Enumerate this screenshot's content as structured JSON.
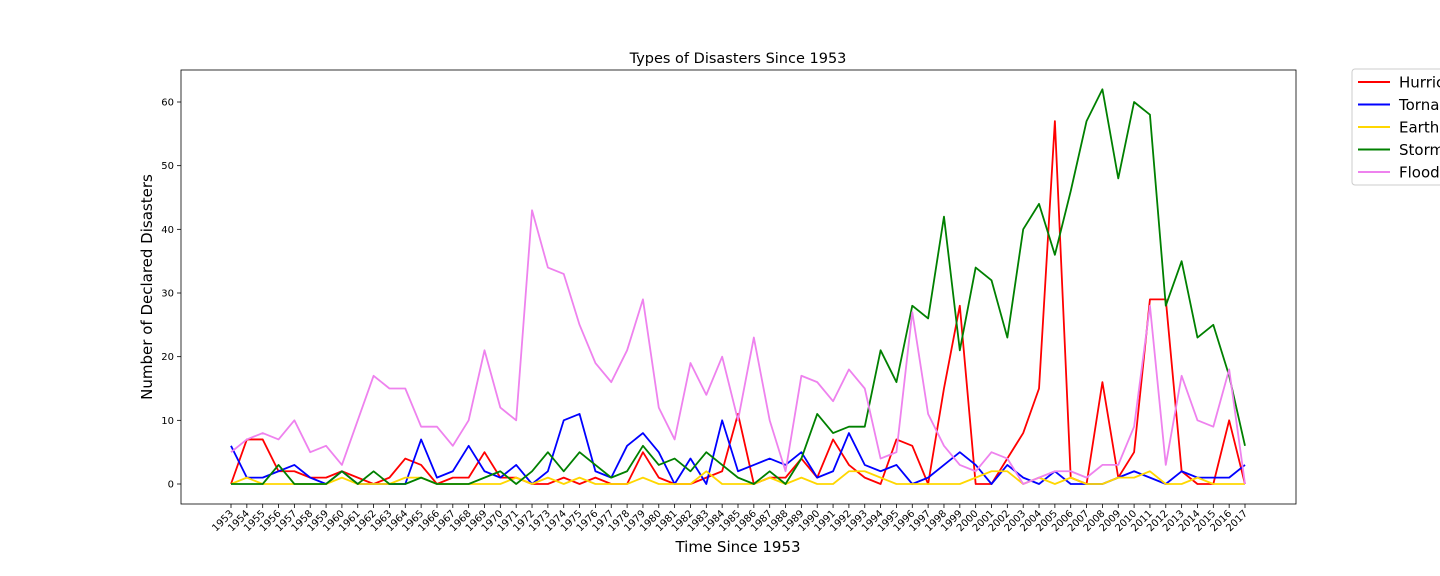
{
  "chart_data": {
    "type": "line",
    "title": "Types of Disasters Since 1953",
    "xlabel": "Time Since 1953",
    "ylabel": "Number of Declared Disasters",
    "ylim": [
      -3,
      65
    ],
    "yticks": [
      0,
      10,
      20,
      30,
      40,
      50,
      60
    ],
    "grid": false,
    "legend_position": "outside-top-right",
    "x": [
      "1953",
      "1954",
      "1955",
      "1956",
      "1957",
      "1958",
      "1959",
      "1960",
      "1961",
      "1962",
      "1963",
      "1964",
      "1965",
      "1966",
      "1967",
      "1968",
      "1969",
      "1970",
      "1971",
      "1972",
      "1973",
      "1974",
      "1975",
      "1976",
      "1977",
      "1978",
      "1979",
      "1980",
      "1981",
      "1982",
      "1983",
      "1984",
      "1985",
      "1986",
      "1987",
      "1988",
      "1989",
      "1990",
      "1991",
      "1992",
      "1993",
      "1994",
      "1995",
      "1996",
      "1997",
      "1998",
      "1999",
      "2000",
      "2001",
      "2002",
      "2003",
      "2004",
      "2005",
      "2006",
      "2007",
      "2008",
      "2009",
      "2010",
      "2011",
      "2012",
      "2013",
      "2014",
      "2015",
      "2016",
      "2017"
    ],
    "series": [
      {
        "name": "Hurric",
        "color": "#ff0000",
        "values": [
          0,
          7,
          7,
          2,
          2,
          1,
          1,
          2,
          1,
          0,
          1,
          4,
          3,
          0,
          1,
          1,
          5,
          1,
          1,
          0,
          0,
          1,
          0,
          1,
          0,
          0,
          5,
          1,
          0,
          0,
          1,
          2,
          11,
          0,
          1,
          1,
          4,
          1,
          7,
          3,
          1,
          0,
          7,
          6,
          0,
          15,
          28,
          0,
          0,
          4,
          8,
          15,
          57,
          1,
          0,
          16,
          1,
          5,
          29,
          29,
          2,
          0,
          0,
          10,
          0
        ]
      },
      {
        "name": "Torna",
        "color": "#0000ff",
        "values": [
          6,
          1,
          1,
          2,
          3,
          1,
          0,
          2,
          0,
          0,
          0,
          0,
          7,
          1,
          2,
          6,
          2,
          1,
          3,
          0,
          2,
          10,
          11,
          2,
          1,
          6,
          8,
          5,
          0,
          4,
          0,
          10,
          2,
          3,
          4,
          3,
          5,
          1,
          2,
          8,
          3,
          2,
          3,
          0,
          1,
          3,
          5,
          3,
          0,
          3,
          1,
          0,
          2,
          0,
          0,
          0,
          1,
          2,
          1,
          0,
          2,
          1,
          1,
          1,
          3
        ]
      },
      {
        "name": "Earth",
        "color": "#ffd700",
        "values": [
          0,
          1,
          0,
          0,
          0,
          0,
          0,
          1,
          0,
          0,
          0,
          1,
          1,
          0,
          0,
          0,
          0,
          0,
          1,
          0,
          1,
          0,
          1,
          0,
          0,
          0,
          1,
          0,
          0,
          0,
          2,
          0,
          0,
          0,
          1,
          0,
          1,
          0,
          0,
          2,
          2,
          1,
          0,
          0,
          0,
          0,
          0,
          1,
          2,
          2,
          0,
          1,
          0,
          1,
          0,
          0,
          1,
          1,
          2,
          0,
          0,
          1,
          0,
          0,
          0
        ]
      },
      {
        "name": "Storm",
        "color": "#008000",
        "values": [
          0,
          0,
          0,
          3,
          0,
          0,
          0,
          2,
          0,
          2,
          0,
          0,
          1,
          0,
          0,
          0,
          1,
          2,
          0,
          2,
          5,
          2,
          5,
          3,
          1,
          2,
          6,
          3,
          4,
          2,
          5,
          3,
          1,
          0,
          2,
          0,
          4,
          11,
          8,
          9,
          9,
          21,
          16,
          28,
          26,
          42,
          21,
          34,
          32,
          23,
          40,
          44,
          36,
          46,
          57,
          62,
          48,
          60,
          58,
          28,
          35,
          23,
          25,
          17,
          6
        ]
      },
      {
        "name": "Flood",
        "color": "#ee82ee",
        "values": [
          5,
          7,
          8,
          7,
          10,
          5,
          6,
          3,
          10,
          17,
          15,
          15,
          9,
          9,
          6,
          10,
          21,
          12,
          10,
          43,
          34,
          33,
          25,
          19,
          16,
          21,
          29,
          12,
          7,
          19,
          14,
          20,
          10,
          23,
          10,
          2,
          17,
          16,
          13,
          18,
          15,
          4,
          5,
          27,
          11,
          6,
          3,
          2,
          5,
          4,
          0,
          1,
          2,
          2,
          1,
          3,
          3,
          9,
          28,
          3,
          17,
          10,
          9,
          18,
          0
        ]
      }
    ]
  }
}
